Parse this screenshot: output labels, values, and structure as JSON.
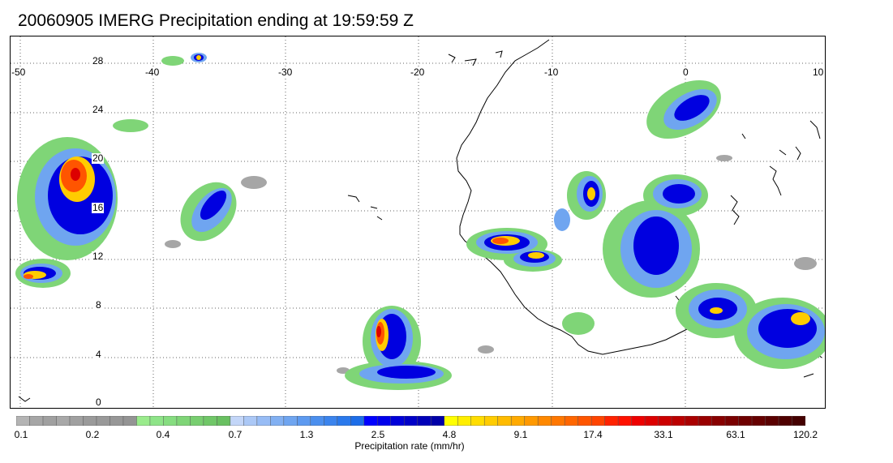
{
  "title": "20060905 IMERG Precipitation ending at 19:59:59 Z",
  "lon_labels": [
    "-50",
    "-40",
    "-30",
    "-20",
    "-10",
    "0",
    "10"
  ],
  "lat_labels": [
    "28",
    "24",
    "20",
    "16",
    "12",
    "8",
    "4",
    "0"
  ],
  "colorbar": {
    "colors": [
      "#b4b4b4",
      "#a6a6a6",
      "#a0a0a0",
      "#a8a8a8",
      "#a0a0a0",
      "#9a9a9a",
      "#999999",
      "#979797",
      "#949494",
      "#9aeb8c",
      "#8ee488",
      "#86dd80",
      "#7fd577",
      "#78ce70",
      "#70c768",
      "#69c061",
      "#c3d6f8",
      "#abc8f6",
      "#97bcf5",
      "#82b0f2",
      "#6fa5f0",
      "#5d9af0",
      "#4b8fee",
      "#3b84ed",
      "#2a79ec",
      "#1c6de8",
      "#0000ff",
      "#0000ec",
      "#0000d9",
      "#0000c8",
      "#0000b8",
      "#0000a8",
      "#ffff00",
      "#ffee00",
      "#ffdd00",
      "#ffcc00",
      "#ffbb00",
      "#ffaa00",
      "#ff9900",
      "#ff8800",
      "#ff7700",
      "#ff6600",
      "#ff5500",
      "#ff4400",
      "#ff2200",
      "#ff1100",
      "#ee0000",
      "#dd0000",
      "#cc0000",
      "#bb0000",
      "#aa0000",
      "#990000",
      "#880000",
      "#7a0000",
      "#6e0000",
      "#660000",
      "#5a0000",
      "#4e0000",
      "#440000"
    ],
    "ticks": [
      "0.1",
      "0.2",
      "0.4",
      "0.7",
      "1.3",
      "2.5",
      "4.8",
      "9.1",
      "17.4",
      "33.1",
      "63.1",
      "120.2"
    ],
    "label": "Precipitation rate (mm/hr)"
  }
}
